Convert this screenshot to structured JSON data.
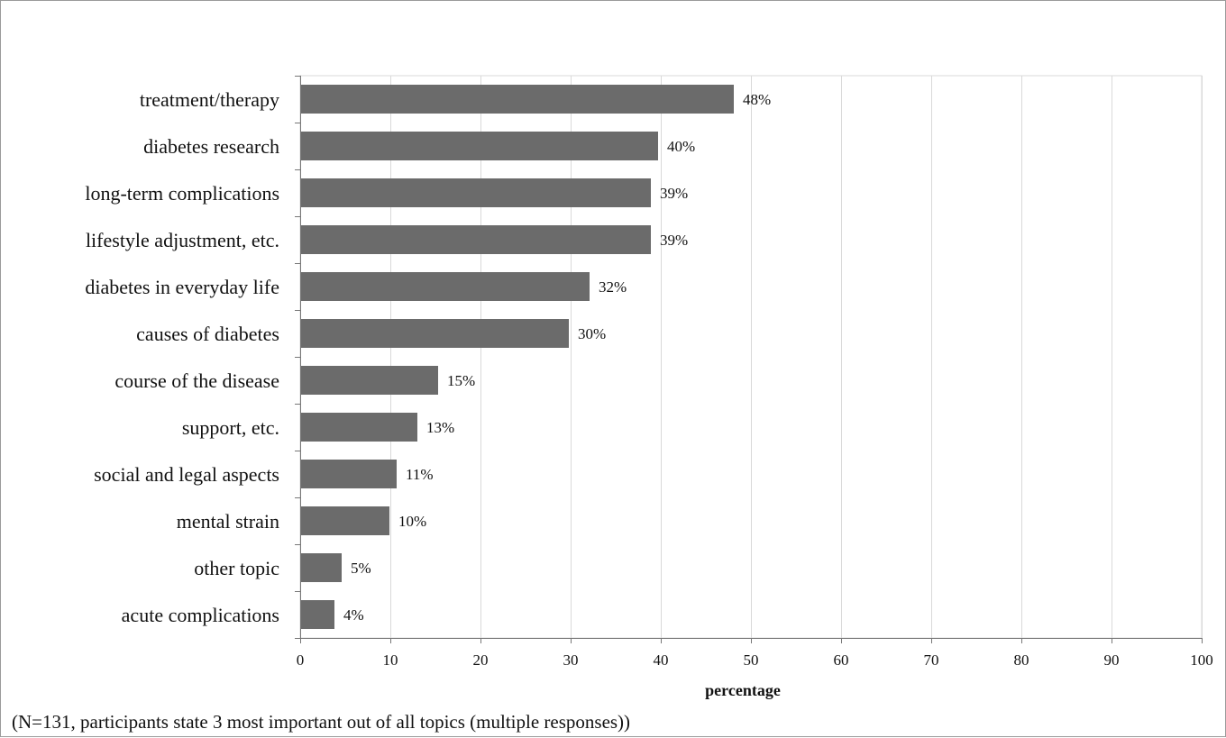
{
  "chart_data": {
    "type": "bar",
    "orientation": "horizontal",
    "categories": [
      "treatment/therapy",
      "diabetes research",
      "long-term complications",
      "lifestyle adjustment, etc.",
      "diabetes in everyday life",
      "causes of diabetes",
      "course of the disease",
      "support, etc.",
      "social and legal aspects",
      "mental strain",
      "other topic",
      "acute complications"
    ],
    "values": [
      48.1,
      39.7,
      38.9,
      38.9,
      32.1,
      29.8,
      15.3,
      13.0,
      10.7,
      9.9,
      4.6,
      3.8
    ],
    "data_labels": [
      "48%",
      "40%",
      "39%",
      "39%",
      "32%",
      "30%",
      "15%",
      "13%",
      "11%",
      "10%",
      "5%",
      "4%"
    ],
    "xlabel": "percentage",
    "ylabel": "",
    "xlim": [
      0,
      100
    ],
    "xticks": [
      0,
      10,
      20,
      30,
      40,
      50,
      60,
      70,
      80,
      90,
      100
    ],
    "grid": "vertical",
    "bar_color": "#6b6b6b",
    "grid_color": "#d9d9d9"
  },
  "footnote": "(N=131, participants state 3 most important out of all topics (multiple responses))"
}
